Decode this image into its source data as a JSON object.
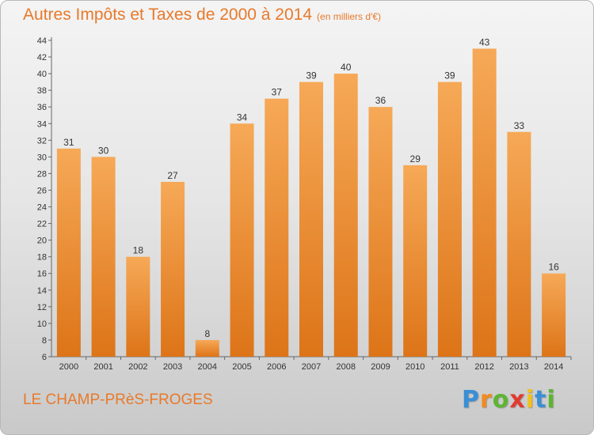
{
  "title": "Autres Impôts et Taxes de 2000 à 2014",
  "unit": "(en milliers d'€)",
  "commune": "LE CHAMP-PRèS-FROGES",
  "logo": {
    "letters": [
      "P",
      "r",
      "o",
      "x",
      "i",
      "t",
      "i"
    ],
    "colors": [
      "#3a8fd6",
      "#f28a1c",
      "#5cb531",
      "#e23a2e",
      "#f2c21c",
      "#3a8fd6",
      "#5cb531"
    ]
  },
  "colors": {
    "bar_top": "#f6a957",
    "bar_bottom": "#dd7418",
    "accent": "#e8792a"
  },
  "chart_data": {
    "type": "bar",
    "categories": [
      "2000",
      "2001",
      "2002",
      "2003",
      "2004",
      "2005",
      "2006",
      "2007",
      "2008",
      "2009",
      "2010",
      "2011",
      "2012",
      "2013",
      "2014"
    ],
    "values": [
      31,
      30,
      18,
      27,
      8,
      34,
      37,
      39,
      40,
      36,
      29,
      39,
      43,
      33,
      16
    ],
    "ylim": [
      6,
      44
    ],
    "yticks": [
      6,
      8,
      10,
      12,
      14,
      16,
      18,
      20,
      22,
      24,
      26,
      28,
      30,
      32,
      34,
      36,
      38,
      40,
      42,
      44
    ],
    "grid": false,
    "data_labels": true
  }
}
